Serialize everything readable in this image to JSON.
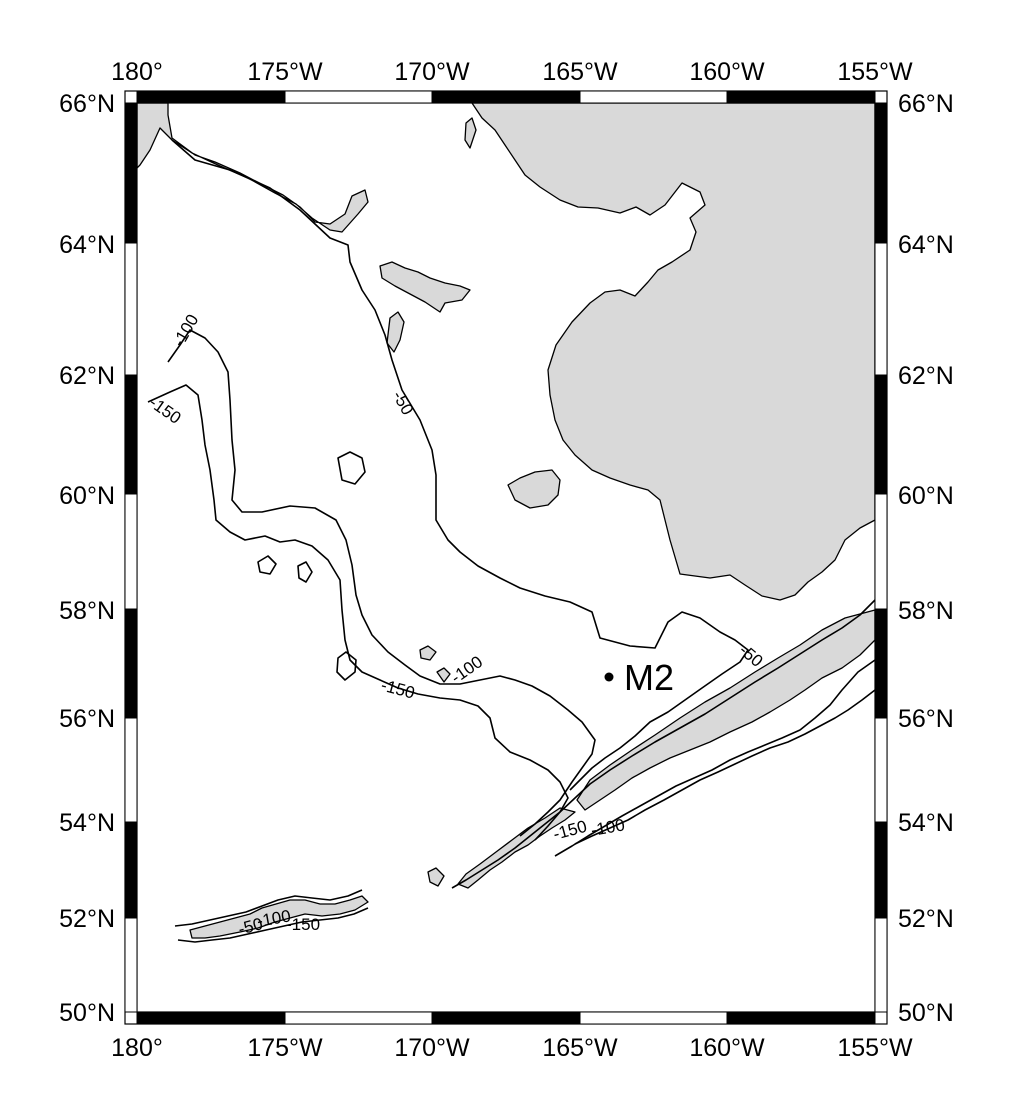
{
  "map": {
    "lon_labels": [
      "180°",
      "175°W",
      "170°W",
      "165°W",
      "160°W",
      "155°W"
    ],
    "lat_labels": [
      "50°N",
      "52°N",
      "54°N",
      "56°N",
      "58°N",
      "60°N",
      "62°N",
      "64°N",
      "66°N"
    ],
    "contour_labels": [
      "-50",
      "-100",
      "-150"
    ],
    "station": {
      "name": "M2"
    },
    "colors": {
      "land": "#d9d9d9",
      "contour": "#000000",
      "frame_dark": "#000000",
      "frame_light": "#ffffff"
    }
  }
}
